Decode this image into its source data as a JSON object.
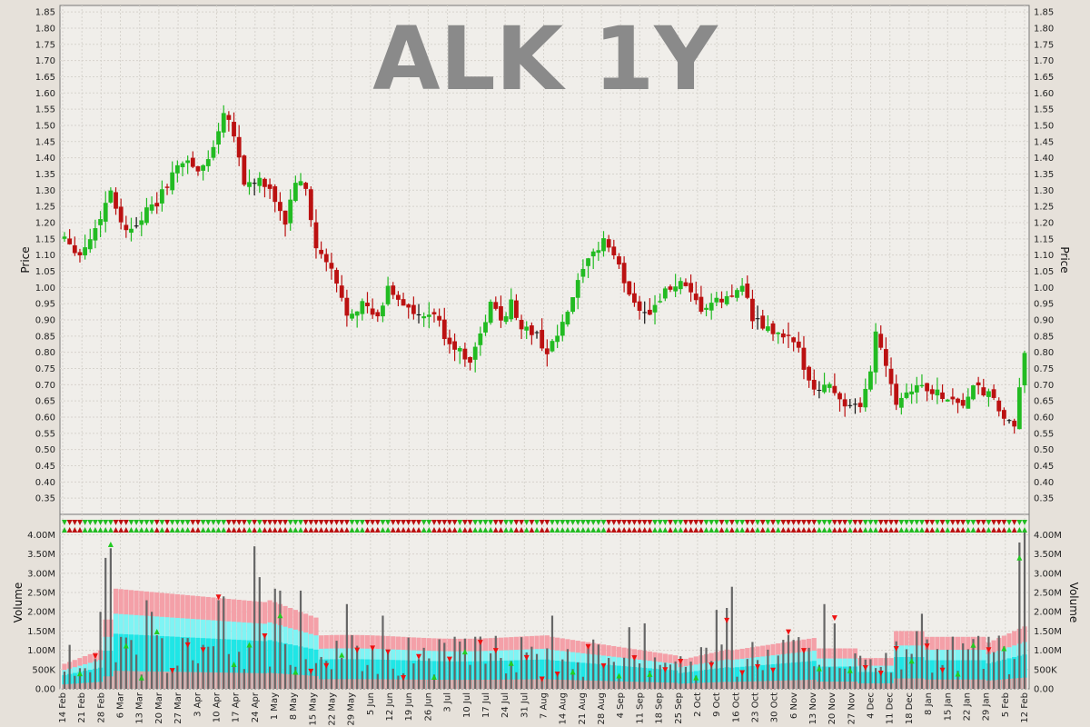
{
  "chart_data": [
    {
      "type": "candlestick",
      "title": "ALK 1Y",
      "ylabel": "Price",
      "ylim": [
        0.3,
        1.87
      ],
      "yticks": [
        "0.35",
        "0.40",
        "0.45",
        "0.50",
        "0.55",
        "0.60",
        "0.65",
        "0.70",
        "0.75",
        "0.80",
        "0.85",
        "0.90",
        "0.95",
        "1.00",
        "1.05",
        "1.10",
        "1.15",
        "1.20",
        "1.25",
        "1.30",
        "1.35",
        "1.40",
        "1.45",
        "1.50",
        "1.55",
        "1.60",
        "1.65",
        "1.70",
        "1.75",
        "1.80",
        "1.85"
      ],
      "grid": true,
      "close_path": [
        [
          0,
          1.16
        ],
        [
          3,
          1.1
        ],
        [
          6,
          1.18
        ],
        [
          9,
          1.3
        ],
        [
          10,
          1.25
        ],
        [
          12,
          1.17
        ],
        [
          15,
          1.22
        ],
        [
          18,
          1.26
        ],
        [
          21,
          1.35
        ],
        [
          24,
          1.4
        ],
        [
          26,
          1.35
        ],
        [
          29,
          1.43
        ],
        [
          31,
          1.55
        ],
        [
          33,
          1.48
        ],
        [
          35,
          1.32
        ],
        [
          38,
          1.33
        ],
        [
          41,
          1.27
        ],
        [
          43,
          1.2
        ],
        [
          45,
          1.33
        ],
        [
          47,
          1.3
        ],
        [
          49,
          1.12
        ],
        [
          52,
          1.05
        ],
        [
          55,
          0.92
        ],
        [
          58,
          0.95
        ],
        [
          61,
          0.9
        ],
        [
          63,
          1.0
        ],
        [
          66,
          0.95
        ],
        [
          69,
          0.9
        ],
        [
          72,
          0.92
        ],
        [
          74,
          0.85
        ],
        [
          77,
          0.8
        ],
        [
          79,
          0.78
        ],
        [
          81,
          0.85
        ],
        [
          83,
          0.95
        ],
        [
          85,
          0.9
        ],
        [
          87,
          0.95
        ],
        [
          89,
          0.88
        ],
        [
          92,
          0.85
        ],
        [
          94,
          0.8
        ],
        [
          97,
          0.88
        ],
        [
          99,
          0.97
        ],
        [
          101,
          1.05
        ],
        [
          103,
          1.1
        ],
        [
          105,
          1.15
        ],
        [
          107,
          1.1
        ],
        [
          109,
          1.02
        ],
        [
          111,
          0.95
        ],
        [
          114,
          0.92
        ],
        [
          116,
          0.97
        ],
        [
          118,
          1.0
        ],
        [
          120,
          1.01
        ],
        [
          122,
          0.97
        ],
        [
          124,
          0.93
        ],
        [
          126,
          0.95
        ],
        [
          128,
          0.96
        ],
        [
          130,
          0.97
        ],
        [
          132,
          1.02
        ],
        [
          134,
          0.9
        ],
        [
          136,
          0.88
        ],
        [
          138,
          0.86
        ],
        [
          141,
          0.84
        ],
        [
          143,
          0.8
        ],
        [
          145,
          0.72
        ],
        [
          147,
          0.68
        ],
        [
          149,
          0.71
        ],
        [
          151,
          0.65
        ],
        [
          153,
          0.63
        ],
        [
          155,
          0.62
        ],
        [
          157,
          0.75
        ],
        [
          158,
          0.86
        ],
        [
          160,
          0.77
        ],
        [
          162,
          0.65
        ],
        [
          164,
          0.68
        ],
        [
          166,
          0.7
        ],
        [
          169,
          0.68
        ],
        [
          172,
          0.66
        ],
        [
          175,
          0.64
        ],
        [
          177,
          0.69
        ],
        [
          180,
          0.67
        ],
        [
          182,
          0.62
        ],
        [
          184,
          0.58
        ],
        [
          185,
          0.56
        ],
        [
          186,
          0.68
        ],
        [
          187,
          0.8
        ]
      ],
      "ohlc": []
    },
    {
      "type": "volume",
      "ylabel": "Volume",
      "ylim": [
        0,
        4200000
      ],
      "yticks": [
        "0.00",
        "500K",
        "1.00M",
        "1.50M",
        "2.00M",
        "2.50M",
        "3.00M",
        "3.50M",
        "4.00M"
      ],
      "xticks": [
        "14 Feb",
        "21 Feb",
        "28 Feb",
        "6 Mar",
        "13 Mar",
        "20 Mar",
        "27 Mar",
        "3 Apr",
        "10 Apr",
        "17 Apr",
        "24 Apr",
        "1 May",
        "8 May",
        "15 May",
        "22 May",
        "29 May",
        "5 Jun",
        "12 Jun",
        "19 Jun",
        "26 Jun",
        "3 Jul",
        "10 Jul",
        "17 Jul",
        "24 Jul",
        "31 Jul",
        "7 Aug",
        "14 Aug",
        "21 Aug",
        "28 Aug",
        "4 Sep",
        "11 Sep",
        "18 Sep",
        "25 Sep",
        "2 Oct",
        "9 Oct",
        "16 Oct",
        "23 Oct",
        "30 Oct",
        "6 Nov",
        "13 Nov",
        "20 Nov",
        "27 Nov",
        "4 Dec",
        "11 Dec",
        "18 Dec",
        "8 Jan",
        "15 Jan",
        "22 Jan",
        "29 Jan",
        "5 Feb",
        "12 Feb"
      ],
      "volumes": [],
      "avg_band": []
    }
  ],
  "colors": {
    "up": "#22bb22",
    "down": "#bb1111",
    "flat": "#111111",
    "volume_bar": "#666666",
    "band_outer": "#f4a0a8",
    "band_mid": "#7ff4f4",
    "band_inner": "#1fe6e6",
    "band_base": "#d9a6a6",
    "arrow_up": "#22cc22",
    "arrow_down": "#ee1111"
  }
}
